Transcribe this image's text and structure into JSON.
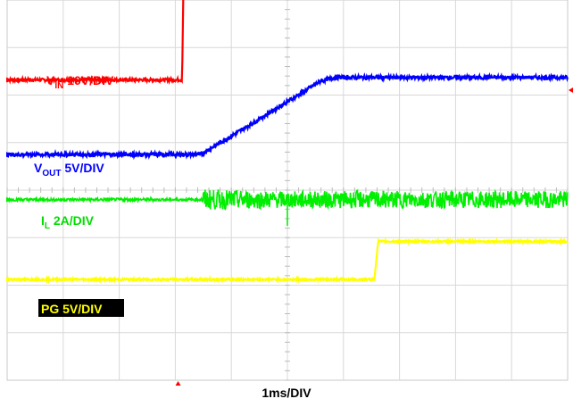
{
  "chart_data": {
    "type": "line",
    "xlabel": "1ms/DIV",
    "time_unit": "ms",
    "x_range": [
      0,
      10
    ],
    "grid": true,
    "series": [
      {
        "name": "VIN",
        "label_main": "V",
        "label_sub": "IN",
        "label_rest": " 10V/DIV",
        "color": "#ff0000",
        "ref_div": 1.68,
        "points": [
          [
            0,
            0
          ],
          [
            3.12,
            0
          ],
          [
            3.15,
            2.3
          ],
          [
            3.2,
            2.65
          ],
          [
            3.35,
            2.6
          ],
          [
            3.6,
            2.58
          ],
          [
            10,
            2.58
          ]
        ],
        "noise_div": 0.03
      },
      {
        "name": "VOUT",
        "label_main": "V",
        "label_sub": "OUT",
        "label_rest": " 5V/DIV",
        "color": "#0000ff",
        "ref_div": 3.25,
        "points": [
          [
            0,
            0
          ],
          [
            3.45,
            0
          ],
          [
            4.3,
            0.6
          ],
          [
            5.6,
            1.55
          ],
          [
            5.85,
            1.62
          ],
          [
            10,
            1.62
          ]
        ],
        "noise_div": 0.04
      },
      {
        "name": "IL",
        "label_main": "I",
        "label_sub": "L",
        "label_rest": " 2A/DIV",
        "color": "#00ee00",
        "ref_div": 4.2,
        "points": [
          [
            0,
            0
          ],
          [
            3.15,
            0
          ],
          [
            3.48,
            0
          ],
          [
            10,
            0
          ]
        ],
        "noise_div": 0.03
      },
      {
        "name": "PG",
        "label_main": "PG 5V/DIV",
        "label_sub": "",
        "label_rest": "",
        "color": "#ffff00",
        "ref_div": 5.88,
        "points": [
          [
            0,
            0
          ],
          [
            6.55,
            0
          ],
          [
            6.62,
            0.8
          ],
          [
            10,
            0.8
          ]
        ],
        "noise_div": 0.02
      }
    ]
  }
}
